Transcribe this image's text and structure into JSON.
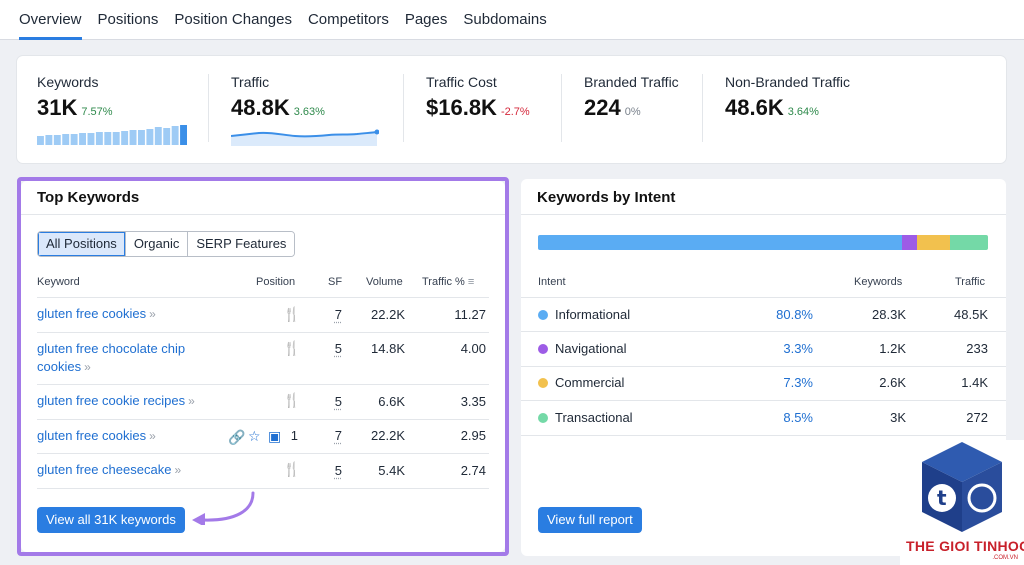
{
  "tabs": [
    "Overview",
    "Positions",
    "Position Changes",
    "Competitors",
    "Pages",
    "Subdomains"
  ],
  "summary": {
    "keywords": {
      "label": "Keywords",
      "value": "31K",
      "delta": "7.57%"
    },
    "traffic": {
      "label": "Traffic",
      "value": "48.8K",
      "delta": "3.63%"
    },
    "traffic_cost": {
      "label": "Traffic Cost",
      "value": "$16.8K",
      "delta": "-2.7%"
    },
    "branded": {
      "label": "Branded Traffic",
      "value": "224",
      "delta": "0%"
    },
    "non_branded": {
      "label": "Non-Branded Traffic",
      "value": "48.6K",
      "delta": "3.64%"
    }
  },
  "keyword_trend_levels": [
    0.45,
    0.5,
    0.5,
    0.55,
    0.55,
    0.6,
    0.6,
    0.65,
    0.65,
    0.65,
    0.7,
    0.75,
    0.75,
    0.8,
    0.9,
    0.85,
    0.95,
    1.0
  ],
  "top_keywords": {
    "title": "Top Keywords",
    "filters": [
      "All Positions",
      "Organic",
      "SERP Features"
    ],
    "columns": {
      "keyword": "Keyword",
      "position": "Position",
      "sf": "SF",
      "volume": "Volume",
      "traffic": "Traffic %"
    },
    "rows": [
      {
        "keyword": "gluten free cookies",
        "sf": "7",
        "volume": "22.2K",
        "traffic": "11.27"
      },
      {
        "keyword": "gluten free chocolate chip",
        "keyword2": "cookies",
        "sf": "5",
        "volume": "14.8K",
        "traffic": "4.00"
      },
      {
        "keyword": "gluten free cookie recipes",
        "sf": "5",
        "volume": "6.6K",
        "traffic": "3.35"
      },
      {
        "keyword": "gluten free cookies",
        "position": "1",
        "sf": "7",
        "volume": "22.2K",
        "traffic": "2.95"
      },
      {
        "keyword": "gluten free cheesecake",
        "sf": "5",
        "volume": "5.4K",
        "traffic": "2.74"
      }
    ],
    "button": "View all 31K keywords"
  },
  "intent": {
    "title": "Keywords by Intent",
    "columns": {
      "intent": "Intent",
      "keywords": "Keywords",
      "traffic": "Traffic"
    },
    "rows": [
      {
        "name": "Informational",
        "pct": "80.8%",
        "share": 80.8,
        "keywords": "28.3K",
        "traffic": "48.5K",
        "color": "#5aacf3"
      },
      {
        "name": "Navigational",
        "pct": "3.3%",
        "share": 3.3,
        "keywords": "1.2K",
        "traffic": "233",
        "color": "#9d5ce6"
      },
      {
        "name": "Commercial",
        "pct": "7.3%",
        "share": 7.3,
        "keywords": "2.6K",
        "traffic": "1.4K",
        "color": "#f2c14e"
      },
      {
        "name": "Transactional",
        "pct": "8.5%",
        "share": 8.5,
        "keywords": "3K",
        "traffic": "272",
        "color": "#74d9a7"
      }
    ],
    "button": "View full report"
  },
  "logo": {
    "name": "THE GIOI TINHOC",
    "sub": ".COM.VN",
    "letter": "t"
  }
}
